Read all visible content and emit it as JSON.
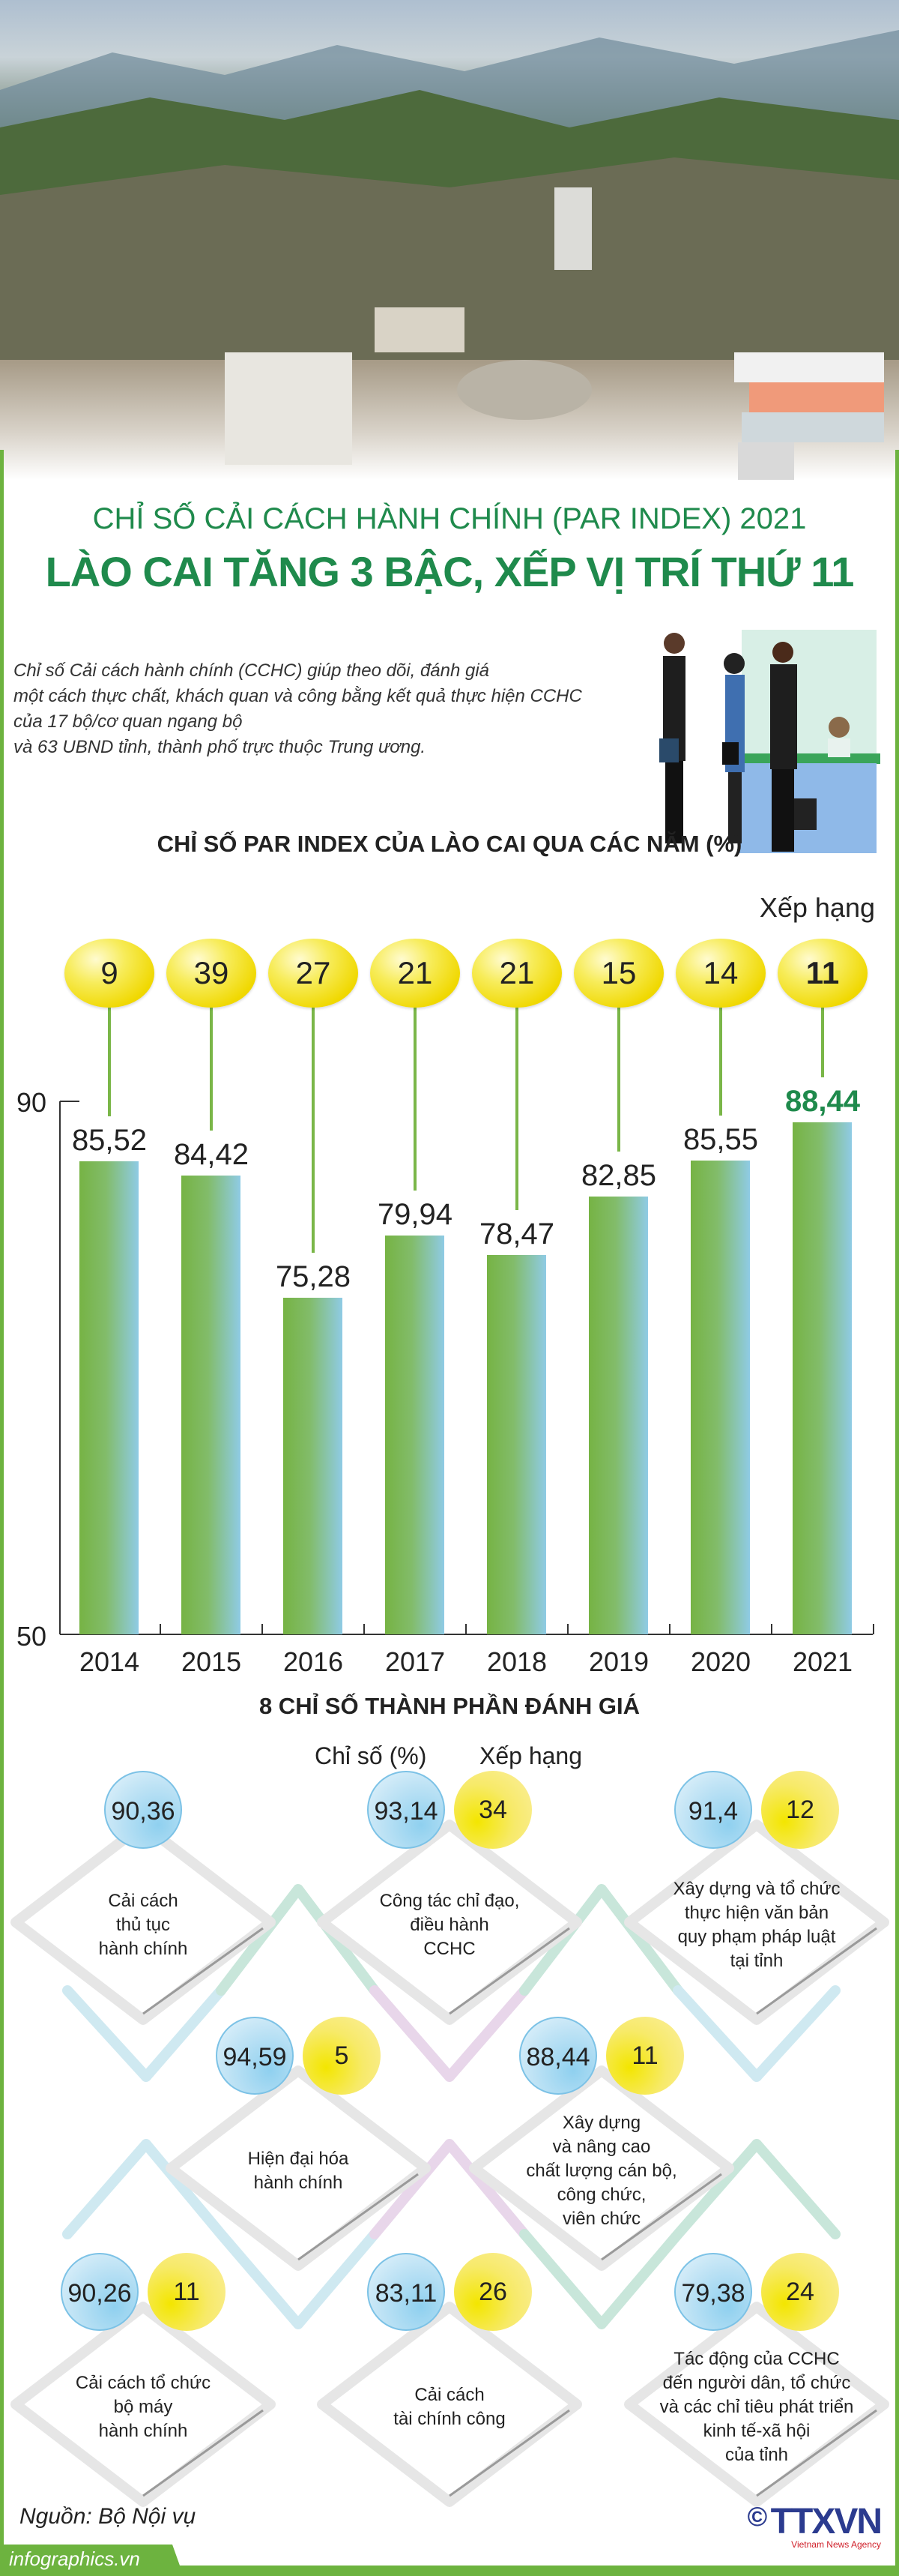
{
  "header": {
    "title_line1": "CHỈ SỐ CẢI CÁCH HÀNH CHÍNH (PAR INDEX) 2021",
    "title_line2": "LÀO CAI TĂNG 3 BẬC, XẾP VỊ TRÍ THỨ 11"
  },
  "intro": {
    "lines": [
      "Chỉ số Cải cách hành chính (CCHC) giúp theo dõi, đánh giá",
      "một cách thực chất, khách quan và công bằng kết quả thực hiện CCHC",
      "của 17 bộ/cơ quan ngang bộ",
      "và 63 UBND tỉnh, thành phố trực thuộc Trung ương."
    ]
  },
  "chart_data": {
    "type": "bar",
    "title": "CHỈ SỐ PAR INDEX CỦA LÀO CAI QUA CÁC NĂM (%)",
    "categories": [
      "2014",
      "2015",
      "2016",
      "2017",
      "2018",
      "2019",
      "2020",
      "2021"
    ],
    "values": [
      85.52,
      84.42,
      75.28,
      79.94,
      78.47,
      82.85,
      85.55,
      88.44
    ],
    "value_labels": [
      "85,52",
      "84,42",
      "75,28",
      "79,94",
      "78,47",
      "82,85",
      "85,55",
      "88,44"
    ],
    "rank_label": "Xếp hạng",
    "ranks": [
      9,
      39,
      27,
      21,
      21,
      15,
      14,
      11
    ],
    "ylim": [
      50,
      90
    ],
    "yticks": [
      "50",
      "90"
    ],
    "grid": false,
    "colors": {
      "bar_start": "#76b344",
      "bar_end": "#8fcbe5",
      "highlight": "#1f8a4c",
      "rank": "#f0d800"
    }
  },
  "components": {
    "title": "8 CHỈ SỐ THÀNH PHẦN ĐÁNH GIÁ",
    "legend_index": "Chỉ số (%)",
    "legend_rank": "Xếp hạng",
    "items": [
      {
        "index": "90,36",
        "rank": "",
        "label": [
          "Cải cách",
          "thủ tục",
          "hành chính"
        ]
      },
      {
        "index": "93,14",
        "rank": "34",
        "label": [
          "Công tác chỉ đạo,",
          "điều hành",
          "CCHC"
        ]
      },
      {
        "index": "91,4",
        "rank": "12",
        "label": [
          "Xây dựng và tổ chức",
          "thực hiện văn bản",
          "quy phạm pháp luật",
          "tại tỉnh"
        ]
      },
      {
        "index": "94,59",
        "rank": "5",
        "label": [
          "Hiện đại hóa",
          "hành chính"
        ]
      },
      {
        "index": "88,44",
        "rank": "11",
        "label": [
          "Xây dựng",
          "và nâng cao",
          "chất lượng cán bộ,",
          "công chức,",
          "viên chức"
        ]
      },
      {
        "index": "90,26",
        "rank": "11",
        "label": [
          "Cải cách tổ chức",
          "bộ máy",
          "hành chính"
        ]
      },
      {
        "index": "83,11",
        "rank": "26",
        "label": [
          "Cải cách",
          "tài chính công"
        ]
      },
      {
        "index": "79,38",
        "rank": "24",
        "label": [
          "Tác động của CCHC",
          "đến người dân, tổ chức",
          "và các chỉ tiêu phát triển",
          "kinh tế-xã hội",
          "của tỉnh"
        ]
      }
    ]
  },
  "footer": {
    "source": "Nguồn: Bộ Nội vụ",
    "site": "infographics.vn",
    "logo_text": "TTXVN",
    "logo_sub": "Vietnam News Agency",
    "copyright": "©"
  }
}
